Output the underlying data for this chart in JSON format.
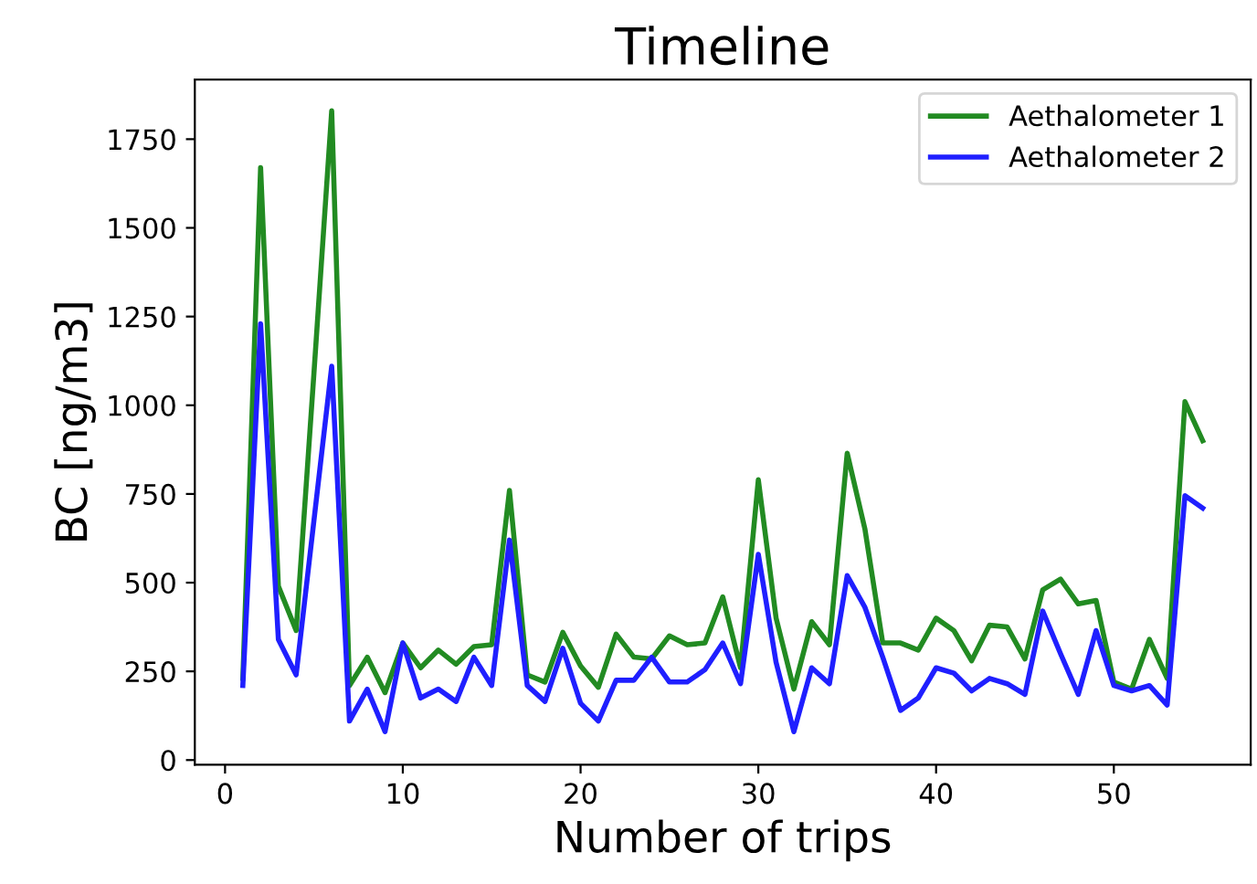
{
  "chart_data": {
    "type": "line",
    "title": "Timeline",
    "xlabel": "Number of trips",
    "ylabel": "BC [ng/m3]",
    "x": [
      1,
      2,
      3,
      4,
      5,
      6,
      7,
      8,
      9,
      10,
      11,
      12,
      13,
      14,
      15,
      16,
      17,
      18,
      19,
      20,
      21,
      22,
      23,
      24,
      25,
      26,
      27,
      28,
      29,
      30,
      31,
      32,
      33,
      34,
      35,
      36,
      37,
      38,
      39,
      40,
      41,
      42,
      43,
      44,
      45,
      46,
      47,
      48,
      49,
      50,
      51,
      52,
      53,
      54,
      55
    ],
    "series": [
      {
        "name": "Aethalometer 1",
        "color": "#228b22",
        "values": [
          230,
          1670,
          490,
          365,
          1090,
          1830,
          210,
          290,
          190,
          330,
          260,
          310,
          270,
          320,
          325,
          760,
          240,
          220,
          360,
          265,
          205,
          355,
          290,
          285,
          350,
          325,
          330,
          460,
          260,
          790,
          400,
          200,
          390,
          325,
          865,
          650,
          330,
          330,
          310,
          400,
          365,
          280,
          380,
          375,
          285,
          480,
          510,
          440,
          450,
          220,
          200,
          340,
          230,
          1010,
          900
        ]
      },
      {
        "name": "Aethalometer 2",
        "color": "#1f1fff",
        "values": [
          210,
          1230,
          340,
          240,
          675,
          1110,
          110,
          200,
          80,
          330,
          175,
          200,
          165,
          290,
          210,
          620,
          210,
          165,
          315,
          160,
          110,
          225,
          225,
          290,
          220,
          220,
          255,
          330,
          215,
          580,
          275,
          80,
          260,
          215,
          520,
          430,
          290,
          140,
          175,
          260,
          245,
          195,
          230,
          215,
          185,
          420,
          300,
          185,
          365,
          210,
          195,
          210,
          155,
          745,
          710
        ]
      }
    ],
    "xlim": [
      -1.7,
      57.7
    ],
    "xticks": [
      0,
      10,
      20,
      30,
      40,
      50
    ],
    "ylim": [
      -13,
      1918
    ],
    "yticks": [
      0,
      250,
      500,
      750,
      1000,
      1250,
      1500,
      1750
    ],
    "grid": false,
    "legend": "top right",
    "line_style": "solid",
    "marker": "none"
  }
}
